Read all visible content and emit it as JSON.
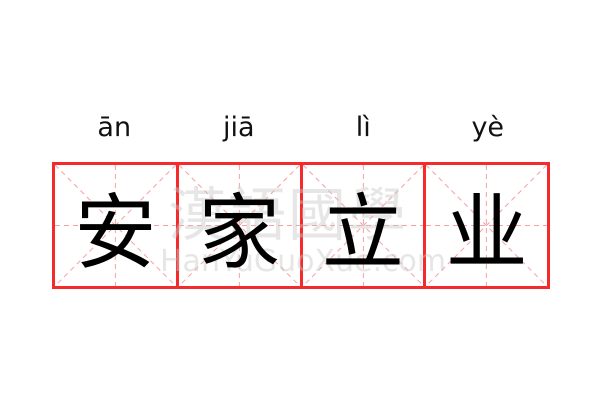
{
  "pinyin": [
    "ān",
    "jiā",
    "lì",
    "yè"
  ],
  "characters": [
    "安",
    "家",
    "立",
    "业"
  ],
  "watermark": {
    "chinese": "漢語國學",
    "latin": "HanYuGuoXue.com"
  },
  "colors": {
    "grid_border": "#f52b2b",
    "guide_lines": "#f8a0a0",
    "character": "#000000"
  }
}
